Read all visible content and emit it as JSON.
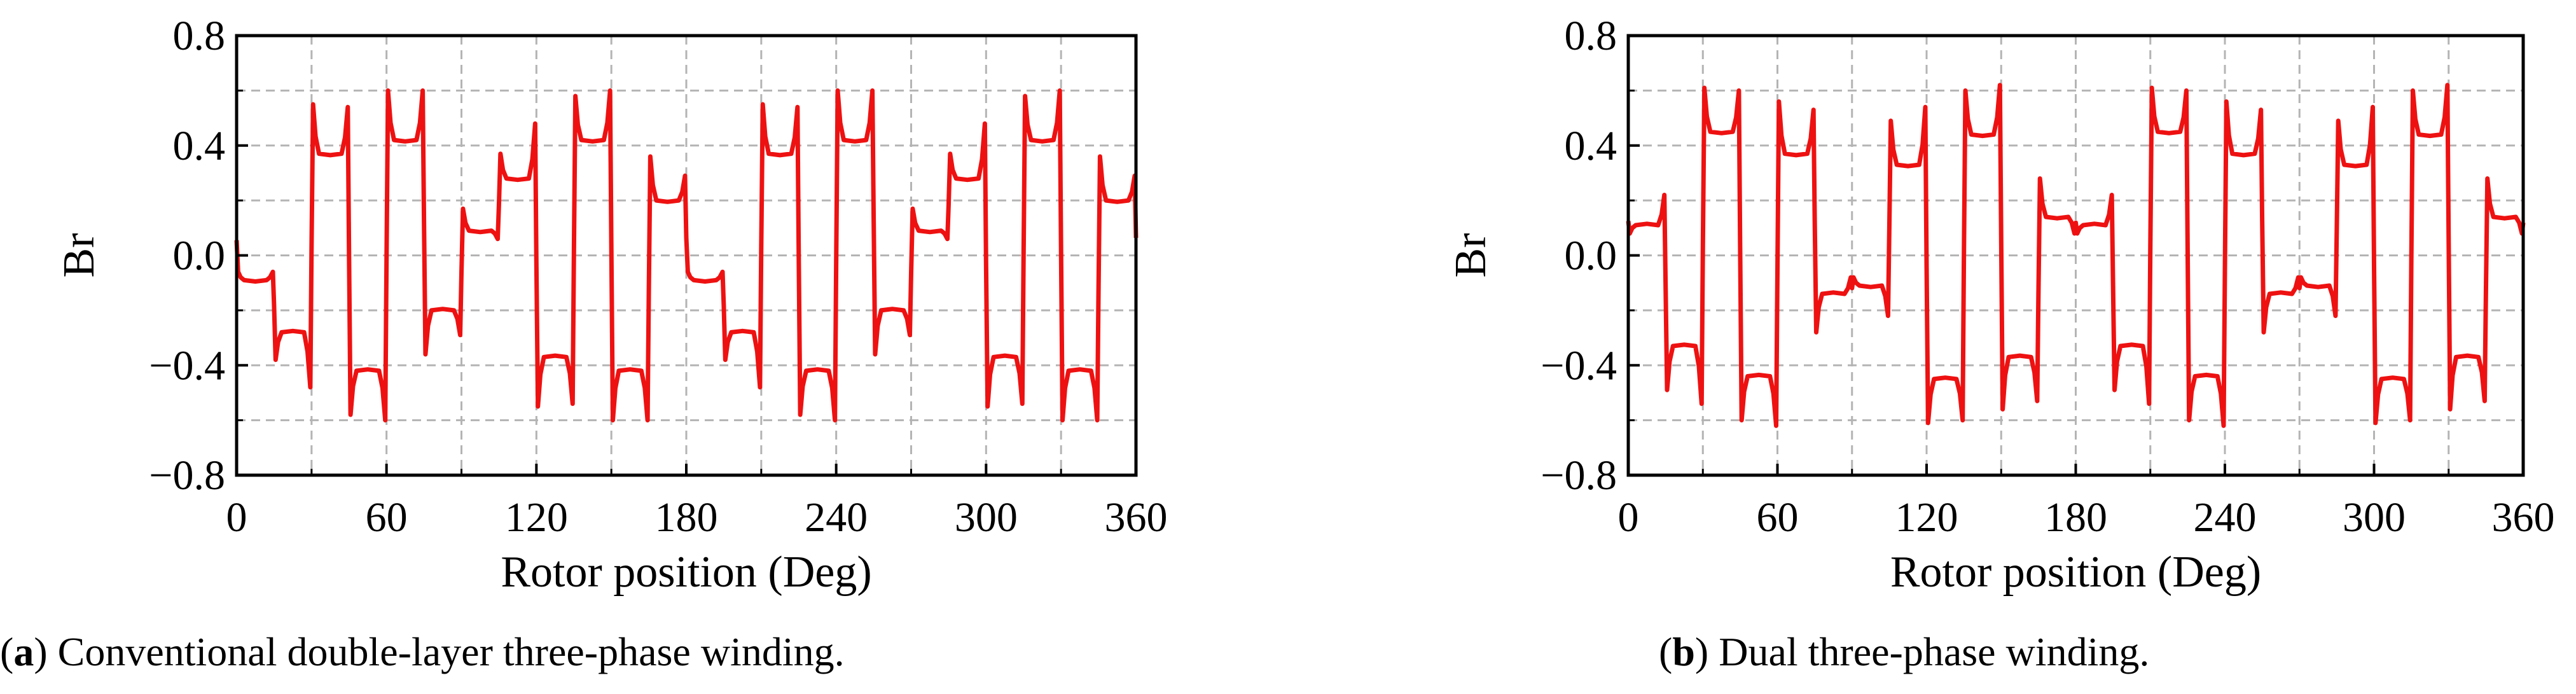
{
  "chart_data": [
    {
      "type": "line",
      "panel_label": "a",
      "caption": "Conventional double-layer three-phase winding.",
      "xlabel": "Rotor position (Deg)",
      "ylabel": "Br",
      "xlim": [
        0,
        360
      ],
      "ylim": [
        -0.8,
        0.8
      ],
      "xticks": [
        0,
        60,
        120,
        180,
        240,
        300,
        360
      ],
      "yticks": [
        -0.8,
        -0.4,
        0.0,
        0.4,
        0.8
      ],
      "xtick_labels": [
        "0",
        "60",
        "120",
        "180",
        "240",
        "300",
        "360"
      ],
      "ytick_labels": [
        "−0.8",
        "−0.4",
        "0.0",
        "0.4",
        "0.8"
      ],
      "grid": true,
      "series_color": "#ee1111",
      "series": [
        {
          "segment_width_deg": 15,
          "levels": [
            -0.09,
            -0.28,
            0.37,
            -0.42,
            0.42,
            -0.2,
            0.09,
            0.28,
            -0.37,
            0.42,
            -0.42,
            0.2,
            -0.09,
            -0.28,
            0.37,
            -0.42,
            0.42,
            -0.2,
            0.09,
            0.28,
            -0.37,
            0.42,
            -0.42,
            0.2
          ],
          "edge_peaks": [
            -0.06,
            -0.38,
            0.55,
            -0.58,
            0.6,
            -0.36,
            0.17,
            0.37,
            -0.55,
            0.58,
            -0.6,
            0.36,
            -0.06,
            -0.38,
            0.55,
            -0.58,
            0.6,
            -0.36,
            0.17,
            0.37,
            -0.55,
            0.58,
            -0.6,
            0.36
          ],
          "end_peaks": [
            -0.06,
            -0.48,
            0.54,
            -0.6,
            0.6,
            -0.29,
            0.06,
            0.48,
            -0.54,
            0.6,
            -0.6,
            0.29,
            -0.06,
            -0.48,
            0.54,
            -0.6,
            0.6,
            -0.29,
            0.06,
            0.48,
            -0.54,
            0.6,
            -0.6,
            0.29
          ]
        }
      ]
    },
    {
      "type": "line",
      "panel_label": "b",
      "caption": "Dual three-phase winding.",
      "xlabel": "Rotor position (Deg)",
      "ylabel": "Br",
      "xlim": [
        0,
        360
      ],
      "ylim": [
        -0.8,
        0.8
      ],
      "xticks": [
        0,
        60,
        120,
        180,
        240,
        300,
        360
      ],
      "yticks": [
        -0.8,
        -0.4,
        0.0,
        0.4,
        0.8
      ],
      "xtick_labels": [
        "0",
        "60",
        "120",
        "180",
        "240",
        "300",
        "360"
      ],
      "ytick_labels": [
        "−0.8",
        "−0.4",
        "0.0",
        "0.4",
        "0.8"
      ],
      "grid": true,
      "series_color": "#ee1111",
      "series": [
        {
          "segment_width_deg": 15,
          "levels": [
            0.11,
            -0.33,
            0.45,
            -0.44,
            0.37,
            -0.14,
            -0.11,
            0.33,
            -0.45,
            0.44,
            -0.37,
            0.14,
            0.11,
            -0.33,
            0.45,
            -0.44,
            0.37,
            -0.14,
            -0.11,
            0.33,
            -0.45,
            0.44,
            -0.37,
            0.14
          ],
          "edge_peaks": [
            0.08,
            -0.49,
            0.61,
            -0.6,
            0.56,
            -0.28,
            -0.08,
            0.49,
            -0.61,
            0.6,
            -0.56,
            0.28,
            0.08,
            -0.49,
            0.61,
            -0.6,
            0.56,
            -0.28,
            -0.08,
            0.49,
            -0.61,
            0.6,
            -0.56,
            0.28
          ],
          "end_peaks": [
            0.22,
            -0.54,
            0.6,
            -0.62,
            0.53,
            -0.08,
            -0.22,
            0.54,
            -0.6,
            0.62,
            -0.53,
            0.08,
            0.22,
            -0.54,
            0.6,
            -0.62,
            0.53,
            -0.08,
            -0.22,
            0.54,
            -0.6,
            0.62,
            -0.53,
            0.08
          ]
        }
      ]
    }
  ]
}
